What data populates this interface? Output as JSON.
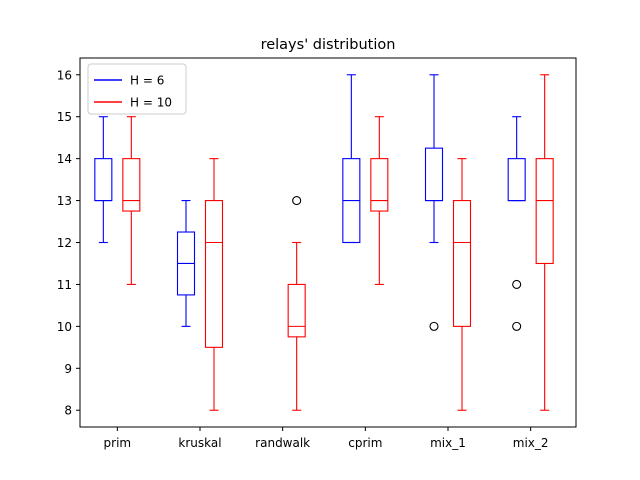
{
  "chart_data": {
    "type": "box",
    "title": "relays' distribution",
    "xlabel": "",
    "ylabel": "",
    "categories": [
      "prim",
      "kruskal",
      "randwalk",
      "cprim",
      "mix_1",
      "mix_2"
    ],
    "ylim": [
      7.6,
      16.4
    ],
    "yticks": [
      8,
      9,
      10,
      11,
      12,
      13,
      14,
      15,
      16
    ],
    "grid": false,
    "legend": {
      "position": "top-left"
    },
    "series": [
      {
        "name": "H = 6",
        "color": "#0000ff",
        "boxes": [
          {
            "category": "prim",
            "whisker_low": 12,
            "q1": 13,
            "median": 13,
            "q3": 14,
            "whisker_high": 15,
            "fliers": []
          },
          {
            "category": "kruskal",
            "whisker_low": 10,
            "q1": 10.75,
            "median": 11.5,
            "q3": 12.25,
            "whisker_high": 13,
            "fliers": []
          },
          {
            "category": "randwalk",
            "whisker_low": null,
            "q1": null,
            "median": null,
            "q3": null,
            "whisker_high": null,
            "fliers": []
          },
          {
            "category": "cprim",
            "whisker_low": 12,
            "q1": 12,
            "median": 13,
            "q3": 14,
            "whisker_high": 16,
            "fliers": []
          },
          {
            "category": "mix_1",
            "whisker_low": 12,
            "q1": 13,
            "median": 13,
            "q3": 14.25,
            "whisker_high": 16,
            "fliers": [
              10
            ]
          },
          {
            "category": "mix_2",
            "whisker_low": 13,
            "q1": 13,
            "median": 13,
            "q3": 14,
            "whisker_high": 15,
            "fliers": [
              11,
              10
            ]
          }
        ]
      },
      {
        "name": "H = 10",
        "color": "#ff0000",
        "boxes": [
          {
            "category": "prim",
            "whisker_low": 11,
            "q1": 12.75,
            "median": 13,
            "q3": 14,
            "whisker_high": 15,
            "fliers": []
          },
          {
            "category": "kruskal",
            "whisker_low": 8,
            "q1": 9.5,
            "median": 12,
            "q3": 13,
            "whisker_high": 14,
            "fliers": []
          },
          {
            "category": "randwalk",
            "whisker_low": 8,
            "q1": 9.75,
            "median": 10,
            "q3": 11,
            "whisker_high": 12,
            "fliers": [
              13
            ]
          },
          {
            "category": "cprim",
            "whisker_low": 11,
            "q1": 12.75,
            "median": 13,
            "q3": 14,
            "whisker_high": 15,
            "fliers": []
          },
          {
            "category": "mix_1",
            "whisker_low": 8,
            "q1": 10,
            "median": 12,
            "q3": 13,
            "whisker_high": 14,
            "fliers": []
          },
          {
            "category": "mix_2",
            "whisker_low": 8,
            "q1": 11.5,
            "median": 13,
            "q3": 14,
            "whisker_high": 16,
            "fliers": []
          }
        ]
      }
    ]
  }
}
